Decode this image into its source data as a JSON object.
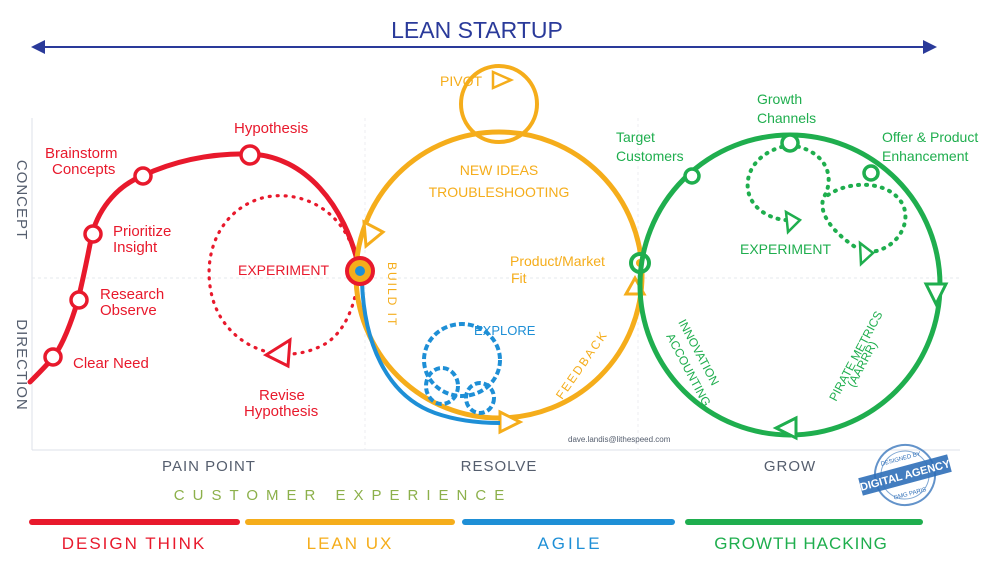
{
  "title": "LEAN STARTUP",
  "y_axis": {
    "top": "CONCEPT",
    "bottom": "DIRECTION"
  },
  "x_axis": [
    "PAIN POINT",
    "RESOLVE",
    "GROW"
  ],
  "customer_experience": "CUSTOMER EXPERIENCE",
  "phases": [
    {
      "label": "DESIGN THINK",
      "color": "#e8192c"
    },
    {
      "label": "LEAN UX",
      "color": "#f5ad1b"
    },
    {
      "label": "AGILE",
      "color": "#1e8fd6"
    },
    {
      "label": "GROWTH HACKING",
      "color": "#1fae4e"
    }
  ],
  "design_think": {
    "clear_need": "Clear Need",
    "research_1": "Research",
    "research_2": "Observe",
    "prioritize_1": "Prioritize",
    "prioritize_2": "Insight",
    "brainstorm_1": "Brainstorm",
    "brainstorm_2": "Concepts",
    "hypothesis": "Hypothesis",
    "experiment": "EXPERIMENT",
    "revise_1": "Revise",
    "revise_2": "Hypothesis"
  },
  "lean_ux": {
    "pivot": "PIVOT",
    "new_ideas": "NEW IDEAS",
    "troubleshooting": "TROUBLESHOOTING",
    "build_it": "BUILD IT",
    "feedback": "FEEDBACK",
    "pmf_1": "Product/Market",
    "pmf_2": "Fit"
  },
  "agile": {
    "explore": "EXPLORE"
  },
  "growth": {
    "target_1": "Target",
    "target_2": "Customers",
    "channels_1": "Growth",
    "channels_2": "Channels",
    "offer_1": "Offer & Product",
    "offer_2": "Enhancement",
    "experiment": "EXPERIMENT",
    "innovation_1": "INNOVATION",
    "innovation_2": "ACCOUNTING",
    "pirate_1": "PIRATE METRICS",
    "pirate_2": "(AARRR)"
  },
  "credit_email": "dave.landis@lithespeed.com",
  "stamp": {
    "top": "DESIGNED BY",
    "main": "DIGITAL AGENCY",
    "bottom": "GMG PARIS"
  }
}
